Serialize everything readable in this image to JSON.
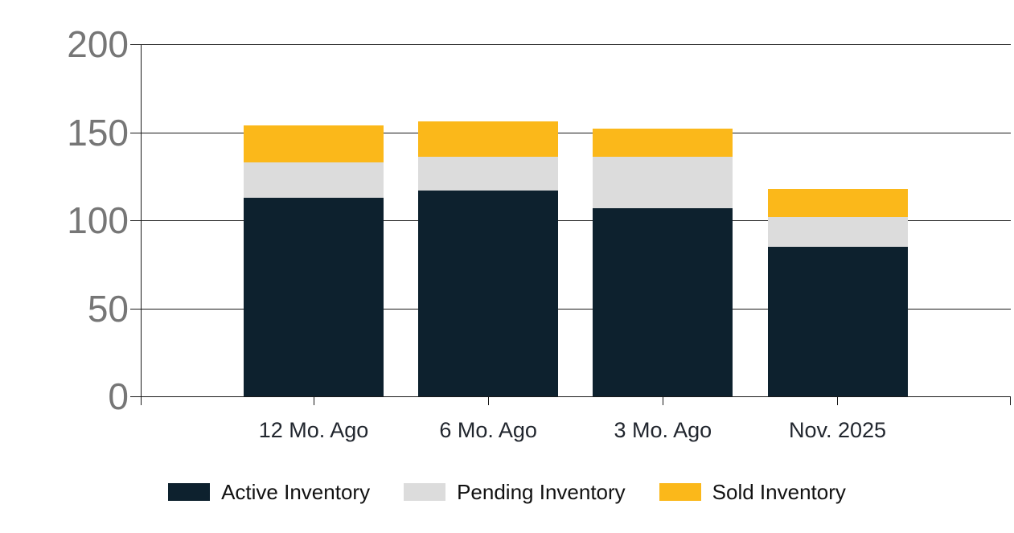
{
  "chart_data": {
    "type": "bar",
    "stacked": true,
    "title": "",
    "xlabel": "",
    "ylabel": "",
    "categories": [
      "12 Mo. Ago",
      "6 Mo. Ago",
      "3 Mo. Ago",
      "Nov. 2025"
    ],
    "series": [
      {
        "name": "Active Inventory",
        "color": "#0d212e",
        "values": [
          113,
          117,
          107,
          85
        ]
      },
      {
        "name": "Pending Inventory",
        "color": "#dcdcdc",
        "values": [
          20,
          19,
          29,
          17
        ]
      },
      {
        "name": "Sold Inventory",
        "color": "#fbb81a",
        "values": [
          21,
          20,
          16,
          16
        ]
      }
    ],
    "ylim": [
      0,
      200
    ],
    "yticks": [
      0,
      50,
      100,
      150,
      200
    ],
    "grid": true,
    "legend_position": "bottom",
    "colors": {
      "axis_line": "#1a1a1a",
      "y_tick_label": "#767676",
      "x_tick_label": "#21262e",
      "legend_text": "#111111",
      "background": "#ffffff"
    }
  }
}
